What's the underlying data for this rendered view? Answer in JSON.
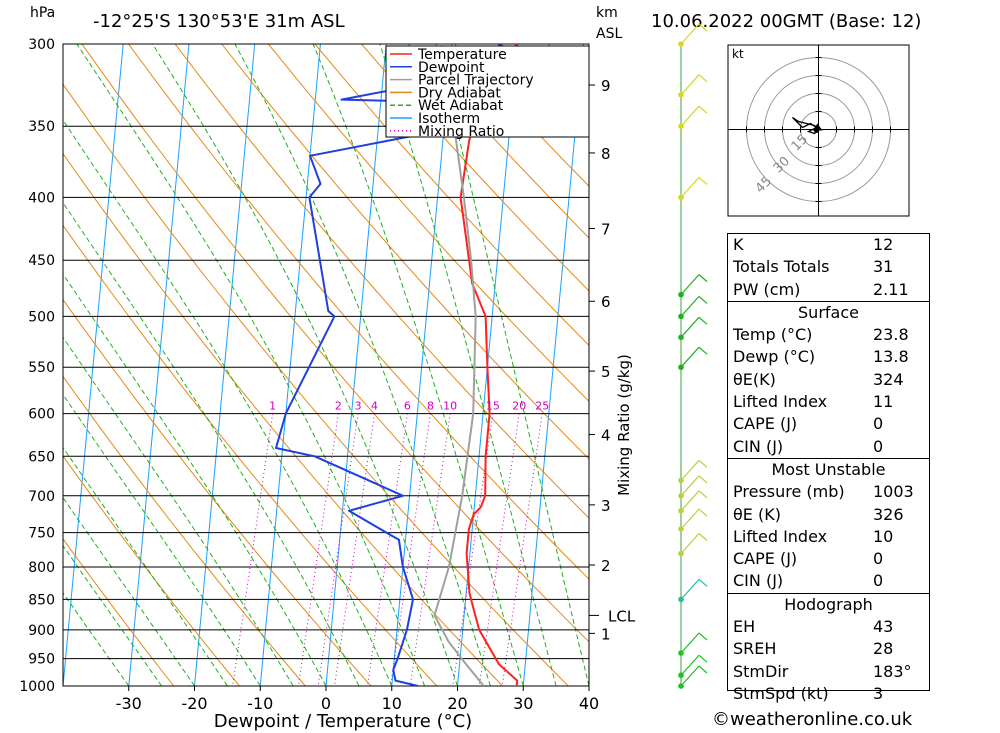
{
  "header": {
    "location": "-12°25'S  130°53'E  31m  ASL",
    "datetime": "10.06.2022  00GMT  (Base: 12)",
    "hpa_unit": "hPa",
    "km_unit": "km",
    "asl_label": "ASL"
  },
  "chart_data": {
    "type": "line",
    "subtype": "skew-t log-p diagram",
    "xlabel": "Dewpoint / Temperature (°C)",
    "ylabel_right": "Mixing Ratio (g/kg)",
    "xlim": [
      -40,
      40
    ],
    "x_ticks": [
      -30,
      -20,
      -10,
      0,
      10,
      20,
      30,
      40
    ],
    "pressure_levels": [
      300,
      350,
      400,
      450,
      500,
      550,
      600,
      650,
      700,
      750,
      800,
      850,
      900,
      950,
      1000
    ],
    "height_km": [
      {
        "km": 1,
        "p": 906
      },
      {
        "km": 2,
        "p": 797
      },
      {
        "km": 3,
        "p": 712
      },
      {
        "km": 4,
        "p": 624
      },
      {
        "km": 5,
        "p": 554
      },
      {
        "km": 6,
        "p": 486
      },
      {
        "km": 7,
        "p": 424
      },
      {
        "km": 8,
        "p": 368
      },
      {
        "km": 9,
        "p": 324
      }
    ],
    "lcl_label": "LCL",
    "lcl_pressure": 876,
    "mixing_ratio_labels": [
      "1",
      "2",
      "3",
      "4",
      "6",
      "8",
      "10",
      "15",
      "20",
      "25"
    ],
    "mixing_ratio_x_at_600": [
      -12,
      -2,
      1,
      3.5,
      8.5,
      12,
      15,
      21.5,
      25.5,
      29
    ],
    "legend": [
      {
        "name": "Temperature",
        "color": "#ff2020",
        "style": "solid"
      },
      {
        "name": "Dewpoint",
        "color": "#1f3fe0",
        "style": "solid"
      },
      {
        "name": "Parcel Trajectory",
        "color": "#a0a0a0",
        "style": "solid"
      },
      {
        "name": "Dry Adiabat",
        "color": "#e58a1a",
        "style": "solid"
      },
      {
        "name": "Wet Adiabat",
        "color": "#20b020",
        "style": "dashed"
      },
      {
        "name": "Isotherm",
        "color": "#1aa0ff",
        "style": "solid"
      },
      {
        "name": "Mixing Ratio",
        "color": "#d000c0",
        "style": "dotted"
      }
    ],
    "series": [
      {
        "name": "Temperature",
        "color": "#ff2020",
        "points": [
          {
            "p": 1000,
            "x": 29.0
          },
          {
            "p": 990,
            "x": 29.0
          },
          {
            "p": 960,
            "x": 26.0
          },
          {
            "p": 900,
            "x": 22.5
          },
          {
            "p": 870,
            "x": 21.5
          },
          {
            "p": 840,
            "x": 20.5
          },
          {
            "p": 780,
            "x": 19.5
          },
          {
            "p": 745,
            "x": 19.5
          },
          {
            "p": 725,
            "x": 20.0
          },
          {
            "p": 715,
            "x": 21.0
          },
          {
            "p": 700,
            "x": 21.5
          },
          {
            "p": 650,
            "x": 21.0
          },
          {
            "p": 630,
            "x": 21.0
          },
          {
            "p": 600,
            "x": 21.0
          },
          {
            "p": 550,
            "x": 20.0
          },
          {
            "p": 500,
            "x": 19.0
          },
          {
            "p": 470,
            "x": 16.5
          },
          {
            "p": 400,
            "x": 13.5
          },
          {
            "p": 360,
            "x": 14.0
          },
          {
            "p": 330,
            "x": 15.0
          },
          {
            "p": 310,
            "x": 17.0
          },
          {
            "p": 300,
            "x": 20.0
          }
        ]
      },
      {
        "name": "Dewpoint",
        "color": "#1f3fe0",
        "points": [
          {
            "p": 1000,
            "x": 14.0
          },
          {
            "p": 990,
            "x": 10.5
          },
          {
            "p": 970,
            "x": 10.0
          },
          {
            "p": 950,
            "x": 10.5
          },
          {
            "p": 900,
            "x": 11.5
          },
          {
            "p": 850,
            "x": 12.0
          },
          {
            "p": 800,
            "x": 10.0
          },
          {
            "p": 760,
            "x": 9.0
          },
          {
            "p": 750,
            "x": 7.0
          },
          {
            "p": 720,
            "x": 1.0
          },
          {
            "p": 700,
            "x": 9.0
          },
          {
            "p": 650,
            "x": -5.0
          },
          {
            "p": 640,
            "x": -11.0
          },
          {
            "p": 600,
            "x": -10.0
          },
          {
            "p": 500,
            "x": -4.0
          },
          {
            "p": 495,
            "x": -5.0
          },
          {
            "p": 400,
            "x": -9.5
          },
          {
            "p": 390,
            "x": -8.0
          },
          {
            "p": 370,
            "x": -10.0
          },
          {
            "p": 355,
            "x": 7.0
          },
          {
            "p": 350,
            "x": 17.5
          },
          {
            "p": 340,
            "x": 17.0
          },
          {
            "p": 335,
            "x": 13.0
          },
          {
            "p": 333,
            "x": -6.0
          },
          {
            "p": 310,
            "x": 24.0
          },
          {
            "p": 305,
            "x": 19.5
          },
          {
            "p": 300,
            "x": 17.0
          }
        ]
      },
      {
        "name": "Parcel Trajectory",
        "color": "#a0a0a0",
        "points": [
          {
            "p": 1000,
            "x": 24.0
          },
          {
            "p": 960,
            "x": 21.0
          },
          {
            "p": 920,
            "x": 18.0
          },
          {
            "p": 876,
            "x": 15.5
          },
          {
            "p": 850,
            "x": 16.0
          },
          {
            "p": 800,
            "x": 17.0
          },
          {
            "p": 700,
            "x": 18.0
          },
          {
            "p": 600,
            "x": 18.5
          },
          {
            "p": 500,
            "x": 17.5
          },
          {
            "p": 450,
            "x": 16.0
          },
          {
            "p": 400,
            "x": 14.0
          },
          {
            "p": 350,
            "x": 11.5
          },
          {
            "p": 300,
            "x": 8.5
          }
        ]
      }
    ],
    "wind_profile": {
      "p": [
        300,
        330,
        350,
        400,
        480,
        500,
        520,
        550,
        680,
        700,
        720,
        745,
        780,
        850,
        940,
        980,
        1000
      ]
    }
  },
  "hodograph": {
    "unit_label": "kt",
    "rings": [
      "15",
      "30",
      "45"
    ]
  },
  "indices": {
    "k_label": "K",
    "k_value": "12",
    "tt_label": "Totals Totals",
    "tt_value": "31",
    "pw_label": "PW (cm)",
    "pw_value": "2.11"
  },
  "surface": {
    "title": "Surface",
    "temp_label": "Temp (°C)",
    "temp_value": "23.8",
    "dewp_label": "Dewp (°C)",
    "dewp_value": "13.8",
    "theta_label": "θE(K)",
    "theta_value": "324",
    "li_label": "Lifted Index",
    "li_value": "11",
    "cape_label": "CAPE (J)",
    "cape_value": "0",
    "cin_label": "CIN (J)",
    "cin_value": "0"
  },
  "most_unstable": {
    "title": "Most Unstable",
    "pressure_label": "Pressure (mb)",
    "pressure_value": "1003",
    "theta_label": "θE (K)",
    "theta_value": "326",
    "li_label": "Lifted Index",
    "li_value": "10",
    "cape_label": "CAPE (J)",
    "cape_value": "0",
    "cin_label": "CIN (J)",
    "cin_value": "0"
  },
  "hodograph_stats": {
    "title": "Hodograph",
    "eh_label": "EH",
    "eh_value": "43",
    "sreh_label": "SREH",
    "sreh_value": "28",
    "stmdir_label": "StmDir",
    "stmdir_value": "183°",
    "stmspd_label": "StmSpd (kt)",
    "stmspd_value": "3"
  },
  "footer": {
    "copyright": "©weatheronline.co.uk"
  }
}
